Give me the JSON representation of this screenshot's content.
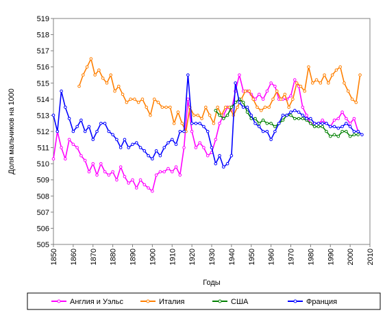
{
  "chart_data": {
    "type": "line",
    "y_label": "Доля мальчиков на 1000",
    "x_label": "Годы",
    "xlim": [
      1850,
      2010
    ],
    "xticks": [
      1850,
      1860,
      1870,
      1880,
      1890,
      1900,
      1910,
      1920,
      1930,
      1940,
      1950,
      1960,
      1970,
      1980,
      1990,
      2000,
      2010
    ],
    "ylim": [
      505,
      519
    ],
    "yticks": [
      505,
      506,
      507,
      508,
      509,
      510,
      511,
      512,
      513,
      514,
      515,
      516,
      517,
      518,
      519
    ],
    "grid": false,
    "legend": "bottom",
    "series": [
      {
        "name": "Англия и Уэльс",
        "color": "#ff00ff",
        "x": [
          1850,
          1852,
          1854,
          1856,
          1858,
          1860,
          1862,
          1864,
          1866,
          1868,
          1870,
          1872,
          1874,
          1876,
          1878,
          1880,
          1882,
          1884,
          1886,
          1888,
          1890,
          1892,
          1894,
          1896,
          1898,
          1900,
          1902,
          1904,
          1906,
          1908,
          1910,
          1912,
          1914,
          1916,
          1918,
          1920,
          1922,
          1924,
          1926,
          1928,
          1930,
          1932,
          1934,
          1936,
          1938,
          1940,
          1942,
          1944,
          1946,
          1948,
          1950,
          1952,
          1954,
          1956,
          1958,
          1960,
          1962,
          1964,
          1966,
          1968,
          1970,
          1972,
          1974,
          1976,
          1978,
          1980,
          1982,
          1984,
          1986,
          1988,
          1990,
          1992,
          1994,
          1996,
          1998,
          2000,
          2002,
          2004
        ],
        "values": [
          510.3,
          512,
          511,
          510.3,
          511.5,
          511.2,
          511,
          510.5,
          510.2,
          509.5,
          510,
          509.3,
          510,
          509.5,
          509.3,
          509.5,
          509,
          509.8,
          509.2,
          508.8,
          509,
          508.5,
          509,
          508.7,
          508.5,
          508.3,
          509.3,
          509.5,
          509.5,
          509.7,
          509.5,
          509.8,
          509.3,
          511,
          514,
          512,
          511,
          511.3,
          511,
          510.5,
          510.7,
          511.5,
          512.5,
          513,
          513.5,
          513.3,
          514.5,
          515.5,
          514.5,
          514.5,
          514.3,
          514,
          514.3,
          514,
          514.5,
          515,
          514.8,
          514,
          514,
          514,
          514.2,
          515.2,
          514.8,
          513.5,
          513,
          512.5,
          512.5,
          512.5,
          512.7,
          512.5,
          512.3,
          512.7,
          512.8,
          513.2,
          512.8,
          512.5,
          512.8,
          512
        ]
      },
      {
        "name": "Италия",
        "color": "#ff7f00",
        "x": [
          1863,
          1865,
          1867,
          1869,
          1871,
          1873,
          1875,
          1877,
          1879,
          1881,
          1883,
          1885,
          1887,
          1889,
          1891,
          1893,
          1895,
          1897,
          1899,
          1901,
          1903,
          1905,
          1907,
          1909,
          1911,
          1913,
          1915,
          1917,
          1919,
          1921,
          1923,
          1925,
          1927,
          1929,
          1931,
          1933,
          1935,
          1937,
          1939,
          1941,
          1943,
          1945,
          1947,
          1949,
          1951,
          1953,
          1955,
          1957,
          1959,
          1961,
          1963,
          1965,
          1967,
          1969,
          1971,
          1973,
          1975,
          1977,
          1979,
          1981,
          1983,
          1985,
          1987,
          1989,
          1991,
          1993,
          1995,
          1997,
          1999,
          2001,
          2003,
          2005
        ],
        "values": [
          514.8,
          515.5,
          516,
          516.5,
          515.5,
          515.8,
          515.3,
          515,
          515.5,
          514.5,
          514.8,
          514.3,
          513.8,
          514,
          514,
          513.8,
          514,
          513.5,
          513,
          514,
          513.8,
          513.5,
          513.5,
          513.5,
          512.5,
          513.2,
          512.5,
          512,
          513.5,
          513,
          513,
          512.8,
          513.5,
          513,
          512.5,
          513.5,
          513,
          513.5,
          513.5,
          513,
          513.5,
          514,
          514.5,
          514.5,
          514,
          513.5,
          513.3,
          513.5,
          513.5,
          514,
          514.5,
          514,
          514.3,
          513.5,
          514,
          515,
          514.8,
          514.5,
          516,
          515,
          515.2,
          515,
          515.5,
          515,
          515.5,
          515.8,
          516,
          515,
          514.5,
          514,
          513.8,
          515.5
        ]
      },
      {
        "name": "США",
        "color": "#008000",
        "x": [
          1932,
          1934,
          1936,
          1938,
          1940,
          1942,
          1944,
          1946,
          1948,
          1950,
          1952,
          1954,
          1956,
          1958,
          1960,
          1962,
          1964,
          1966,
          1968,
          1970,
          1972,
          1974,
          1976,
          1978,
          1980,
          1982,
          1984,
          1986,
          1988,
          1990,
          1992,
          1994,
          1996,
          1998,
          2000,
          2002,
          2004
        ],
        "values": [
          513.3,
          513,
          512.8,
          513,
          513.5,
          513.8,
          514,
          513.8,
          513.2,
          512.8,
          512.8,
          512.5,
          512.7,
          512.5,
          512.5,
          512.3,
          512.5,
          512.7,
          513,
          513,
          512.8,
          512.8,
          512.8,
          512.7,
          512.5,
          512.3,
          512.3,
          512.3,
          512,
          511.7,
          511.8,
          511.7,
          512,
          512,
          511.7,
          511.8,
          511.8
        ]
      },
      {
        "name": "Франция",
        "color": "#0000ff",
        "x": [
          1850,
          1852,
          1854,
          1856,
          1858,
          1860,
          1862,
          1864,
          1866,
          1868,
          1870,
          1872,
          1874,
          1876,
          1878,
          1880,
          1882,
          1884,
          1886,
          1888,
          1890,
          1892,
          1894,
          1896,
          1898,
          1900,
          1902,
          1904,
          1906,
          1908,
          1910,
          1912,
          1914,
          1916,
          1918,
          1920,
          1922,
          1924,
          1926,
          1928,
          1930,
          1932,
          1934,
          1936,
          1938,
          1940,
          1942,
          1944,
          1946,
          1948,
          1950,
          1952,
          1954,
          1956,
          1958,
          1960,
          1962,
          1964,
          1966,
          1968,
          1970,
          1972,
          1974,
          1976,
          1978,
          1980,
          1982,
          1984,
          1986,
          1988,
          1990,
          1992,
          1994,
          1996,
          1998,
          2000,
          2002,
          2004,
          2006
        ],
        "values": [
          513,
          512,
          514.5,
          513.5,
          512.8,
          512,
          512.3,
          512.7,
          512,
          512.3,
          511.5,
          512,
          512.5,
          512.5,
          512,
          511.8,
          511.5,
          511,
          511.5,
          511,
          511.2,
          511.3,
          511,
          510.8,
          510.5,
          510.3,
          510.8,
          510.5,
          511,
          511.3,
          511.5,
          511.2,
          512,
          512,
          515.5,
          512.5,
          512.5,
          512.5,
          512.3,
          512,
          511,
          510,
          510.5,
          509.8,
          510,
          510.5,
          515,
          513.8,
          513.5,
          513.5,
          513,
          512.5,
          512.3,
          512,
          512,
          511.5,
          512,
          512.5,
          513,
          513,
          513.2,
          513.3,
          513.2,
          513,
          512.8,
          512.8,
          512.5,
          512.5,
          512.5,
          512.5,
          512.3,
          512.3,
          512.2,
          512.3,
          512.5,
          512.3,
          512,
          512,
          511.8
        ]
      }
    ]
  }
}
